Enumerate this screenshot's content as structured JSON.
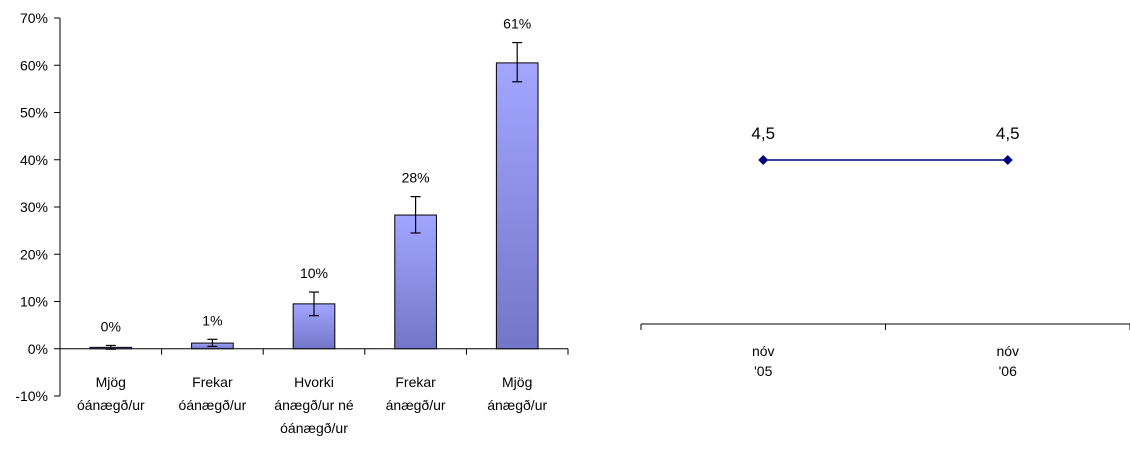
{
  "chart_data": [
    {
      "type": "bar",
      "categories": [
        [
          "Mjög",
          "óánægð/ur"
        ],
        [
          "Frekar",
          "óánægð/ur"
        ],
        [
          "Hvorki",
          "ánægð/ur né",
          "óánægð/ur"
        ],
        [
          "Frekar",
          "ánægð/ur"
        ],
        [
          "Mjög",
          "ánægð/ur"
        ]
      ],
      "values": [
        0.3,
        1.2,
        9.5,
        28.3,
        60.5
      ],
      "data_labels": [
        "0%",
        "1%",
        "10%",
        "28%",
        "61%"
      ],
      "error_bars": [
        [
          -0.1,
          0.7
        ],
        [
          0.5,
          2.0
        ],
        [
          7.0,
          12.0
        ],
        [
          24.5,
          32.2
        ],
        [
          56.5,
          64.8
        ]
      ],
      "ylim": [
        -10,
        70
      ],
      "y_ticks": [
        -10,
        0,
        10,
        20,
        30,
        40,
        50,
        60,
        70
      ],
      "y_tick_labels": [
        "-10%",
        "0%",
        "10%",
        "20%",
        "30%",
        "40%",
        "50%",
        "60%",
        "70%"
      ],
      "color": "#8f92e8",
      "grid": false,
      "legend": "none"
    },
    {
      "type": "line",
      "categories": [
        [
          "nóv",
          "'05"
        ],
        [
          "nóv",
          "'06"
        ]
      ],
      "values": [
        4.5,
        4.5
      ],
      "data_labels": [
        "4,5",
        "4,5"
      ],
      "color": "#000080",
      "grid": false,
      "legend": "none"
    }
  ]
}
